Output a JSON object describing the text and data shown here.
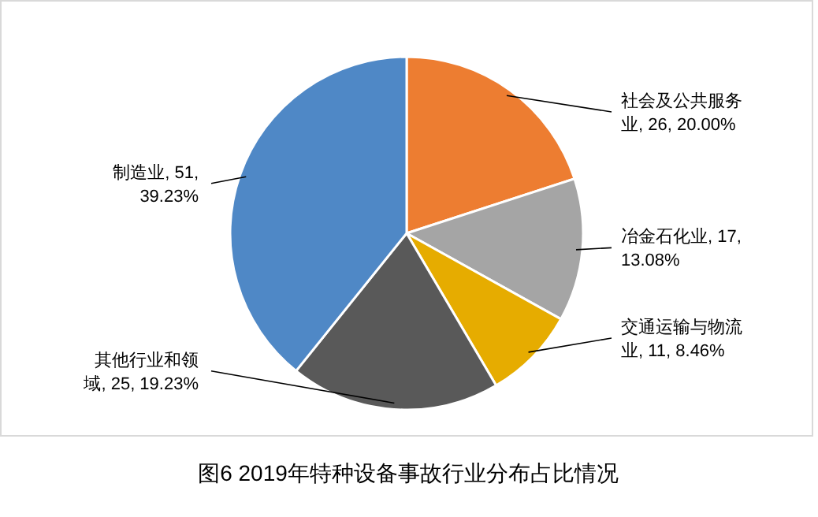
{
  "chart_data": {
    "type": "pie",
    "title": "图6 2019年特种设备事故行业分布占比情况",
    "categories": [
      "社会及公共服务业",
      "冶金石化业",
      "交通运输与物流业",
      "其他行业和领域",
      "制造业"
    ],
    "values": [
      26,
      17,
      11,
      25,
      51
    ],
    "colors": [
      "#ed7d31",
      "#a5a5a5",
      "#e6ac00",
      "#595959",
      "#4f88c6"
    ],
    "value_labels": [
      "26, 20.00%",
      "17, 13.08%",
      "11, 8.46%",
      "25, 19.23%",
      "51, 39.23%"
    ]
  }
}
